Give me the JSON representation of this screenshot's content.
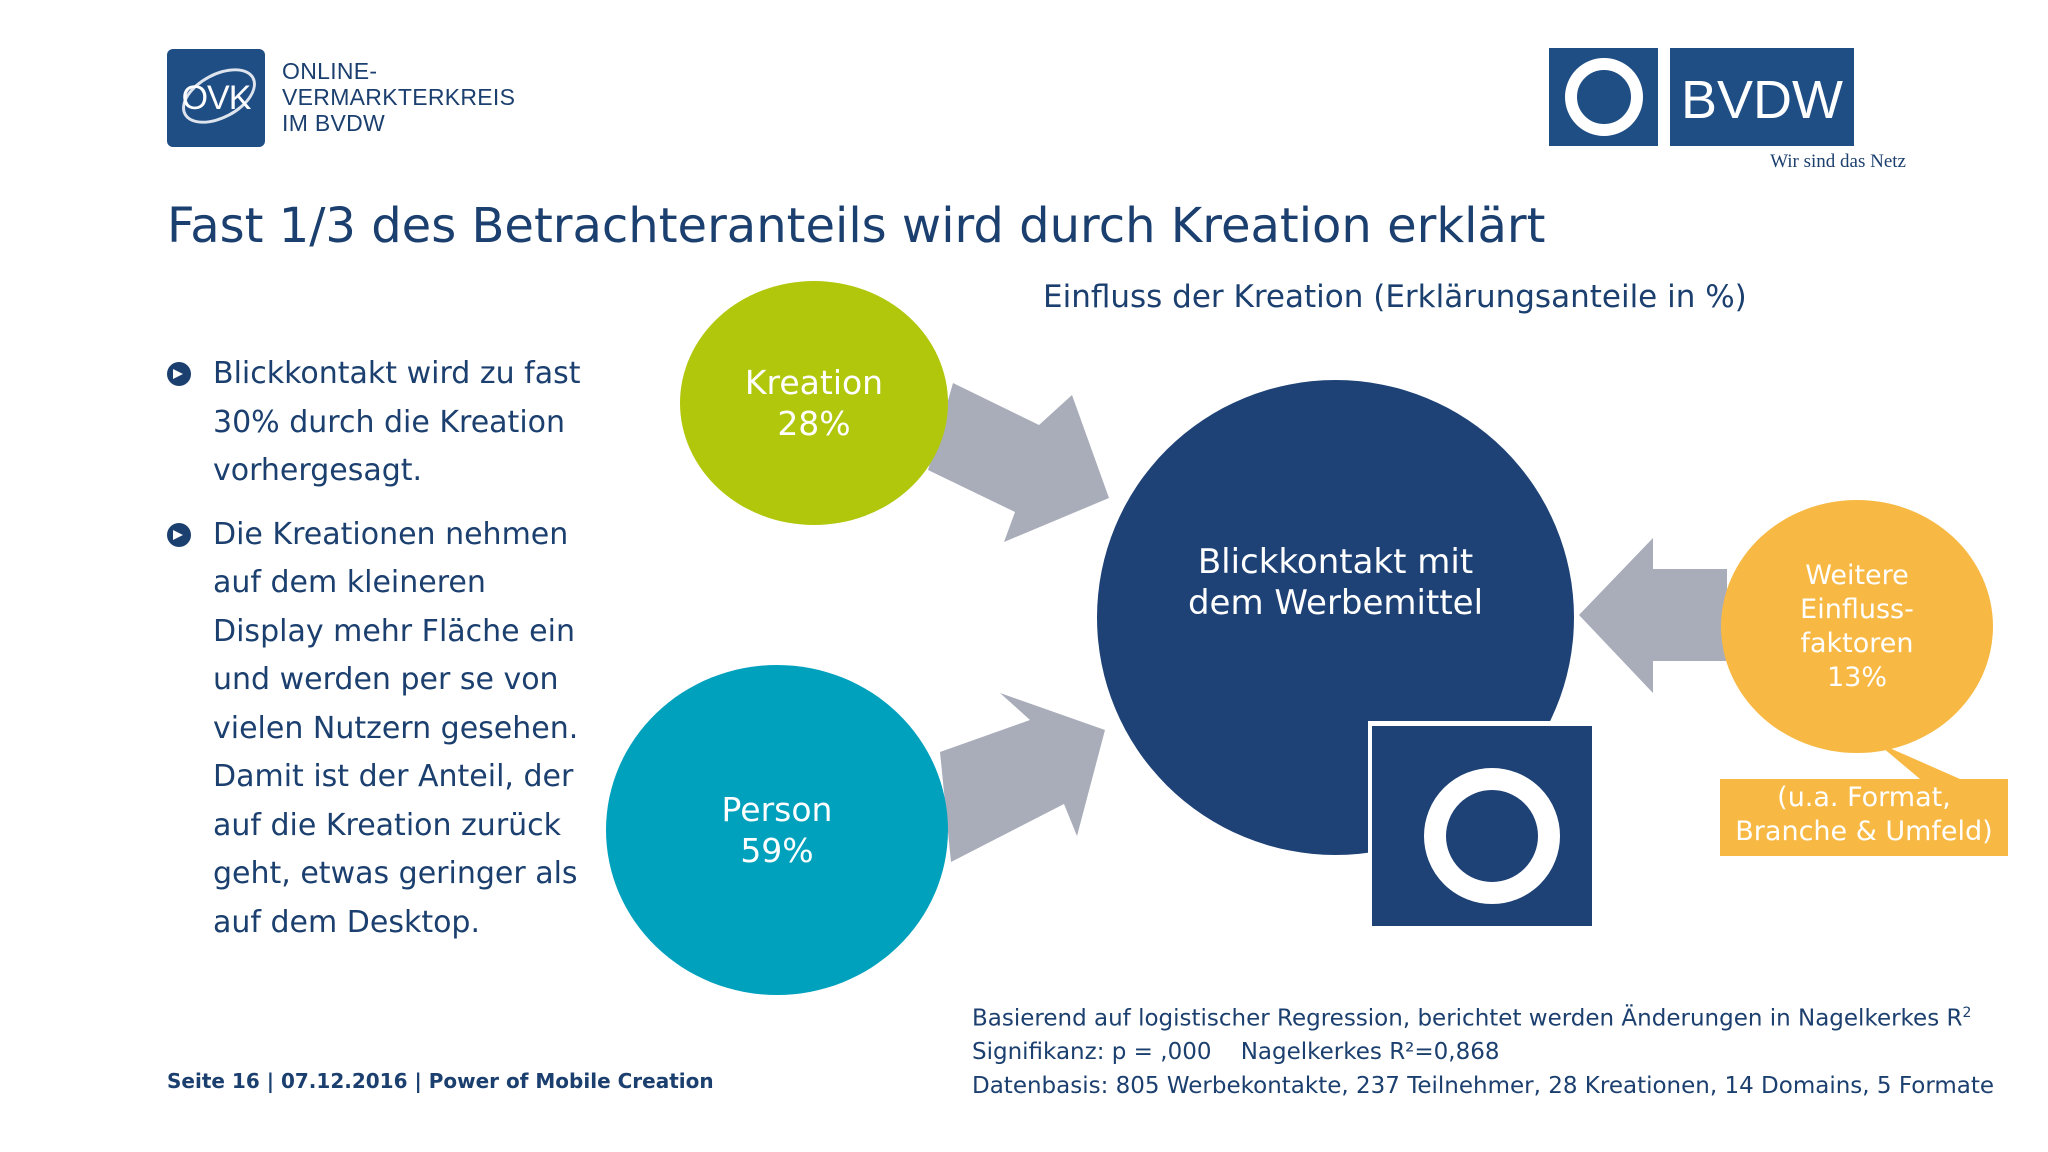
{
  "logos": {
    "ovk": {
      "mark_text": "OVK",
      "lines": [
        "ONLINE-",
        "VERMARKTERKREIS",
        "IM BVDW"
      ]
    },
    "bvdw": {
      "wordmark": "BVDW",
      "tagline": "Wir sind das Netz"
    }
  },
  "slide": {
    "title": "Fast 1/3 des Betrachteranteils wird durch Kreation erklärt",
    "subtitle": "Einfluss der Kreation (Erklärungsanteile in %)"
  },
  "bullets": [
    {
      "lines": [
        "Blickkontakt wird zu fast",
        "30% durch die Kreation",
        "vorhergesagt."
      ]
    },
    {
      "lines": [
        "Die Kreationen nehmen",
        "auf dem kleineren",
        "Display mehr Fläche ein",
        "und werden per se von",
        "vielen Nutzern gesehen.",
        "Damit ist der Anteil, der",
        "auf die Kreation zurück",
        "geht, etwas geringer als",
        "auf dem Desktop."
      ]
    }
  ],
  "diagram": {
    "kreation": {
      "label": "Kreation",
      "value": "28%",
      "color": "#b1c70c"
    },
    "person": {
      "label": "Person",
      "value": "59%",
      "color": "#00a1bd"
    },
    "center": {
      "line1": "Blickkontakt mit",
      "line2": "dem Werbemittel",
      "color": "#1e4276"
    },
    "weitere": {
      "line1": "Weitere",
      "line2": "Einfluss-",
      "line3": "faktoren",
      "value": "13%",
      "color": "#f7b944"
    },
    "callout": {
      "line1": "(u.a. Format,",
      "line2": "Branche & Umfeld)",
      "color": "#f7b944"
    },
    "arrow_color": "#a9adba"
  },
  "notes": {
    "line1_prefix": "Basierend auf logistischer Regression, berichtet werden Änderungen in Nagelkerkes R",
    "line1_sup": "2",
    "line2": "Signifikanz: p = ,000    Nagelkerkes R²=0,868",
    "line3": "Datenbasis: 805 Werbekontakte, 237 Teilnehmer, 28 Kreationen, 14 Domains, 5 Formate"
  },
  "footer": "Seite 16 | 07.12.2016 | Power of Mobile Creation"
}
